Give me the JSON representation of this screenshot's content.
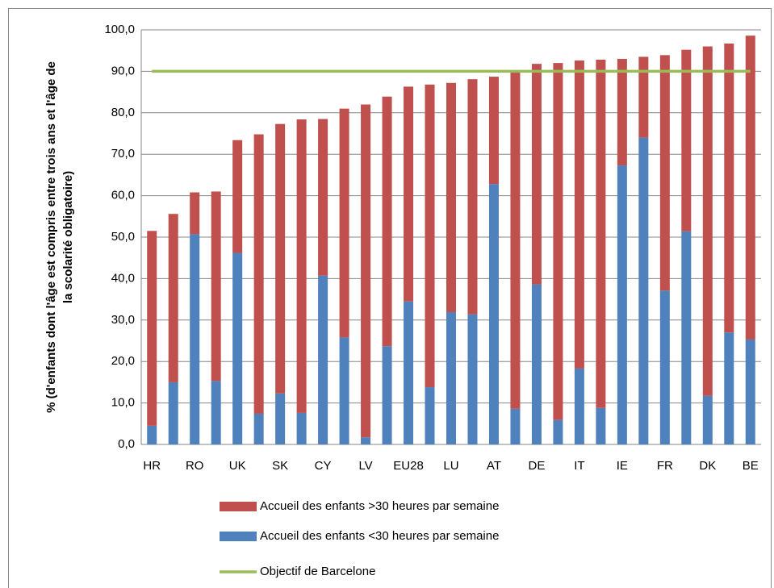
{
  "chart_data": {
    "type": "stacked-bar",
    "ylabel": [
      "% (d'enfants dont l'âge est compris entre trois ans et l'âge de",
      "la scolarité obligatoire)"
    ],
    "categories": [
      "HR",
      null,
      "RO",
      null,
      "UK",
      null,
      "SK",
      null,
      "CY",
      null,
      "LV",
      null,
      "EU28",
      null,
      "LU",
      null,
      "AT",
      null,
      "DE",
      null,
      "IT",
      null,
      "IE",
      null,
      "FR",
      null,
      "DK",
      null,
      "BE"
    ],
    "series": [
      {
        "name": "Accueil des enfants <30 heures par semaine",
        "color": "#4f81bd",
        "type": "bar",
        "values": [
          4.5,
          15.0,
          50.7,
          15.3,
          46.2,
          7.4,
          12.3,
          7.6,
          40.7,
          25.8,
          1.7,
          23.7,
          34.5,
          13.8,
          31.9,
          31.4,
          62.8,
          8.6,
          38.6,
          5.9,
          18.3,
          8.8,
          67.3,
          74.0,
          37.1,
          51.4,
          11.7,
          27.0,
          25.3
        ]
      },
      {
        "name": "Accueil des enfants >30 heures par semaine",
        "color": "#c0504d",
        "type": "bar",
        "values": [
          47.0,
          40.6,
          10.1,
          45.7,
          27.2,
          67.4,
          65.0,
          70.8,
          37.8,
          55.2,
          80.3,
          60.2,
          51.8,
          73.0,
          55.3,
          56.7,
          25.9,
          81.2,
          53.2,
          86.1,
          74.3,
          84.0,
          25.7,
          19.5,
          56.8,
          43.8,
          84.3,
          69.7,
          73.3
        ]
      },
      {
        "name": "Objectif de Barcelone",
        "color": "#9bbb59",
        "type": "line",
        "values": [
          90,
          90,
          90,
          90,
          90,
          90,
          90,
          90,
          90,
          90,
          90,
          90,
          90,
          90,
          90,
          90,
          90,
          90,
          90,
          90,
          90,
          90,
          90,
          90,
          90,
          90,
          90,
          90,
          90
        ]
      }
    ],
    "ylim": [
      0,
      100
    ],
    "yticks": [
      {
        "value": 0,
        "label": "0,0"
      },
      {
        "value": 10,
        "label": "10,0"
      },
      {
        "value": 20,
        "label": "20,0"
      },
      {
        "value": 30,
        "label": "30,0"
      },
      {
        "value": 40,
        "label": "40,0"
      },
      {
        "value": 50,
        "label": "50,0"
      },
      {
        "value": 60,
        "label": "60,0"
      },
      {
        "value": 70,
        "label": "70,0"
      },
      {
        "value": 80,
        "label": "80,0"
      },
      {
        "value": 90,
        "label": "90,0"
      },
      {
        "value": 100,
        "label": "100,0"
      }
    ],
    "grid": true
  }
}
